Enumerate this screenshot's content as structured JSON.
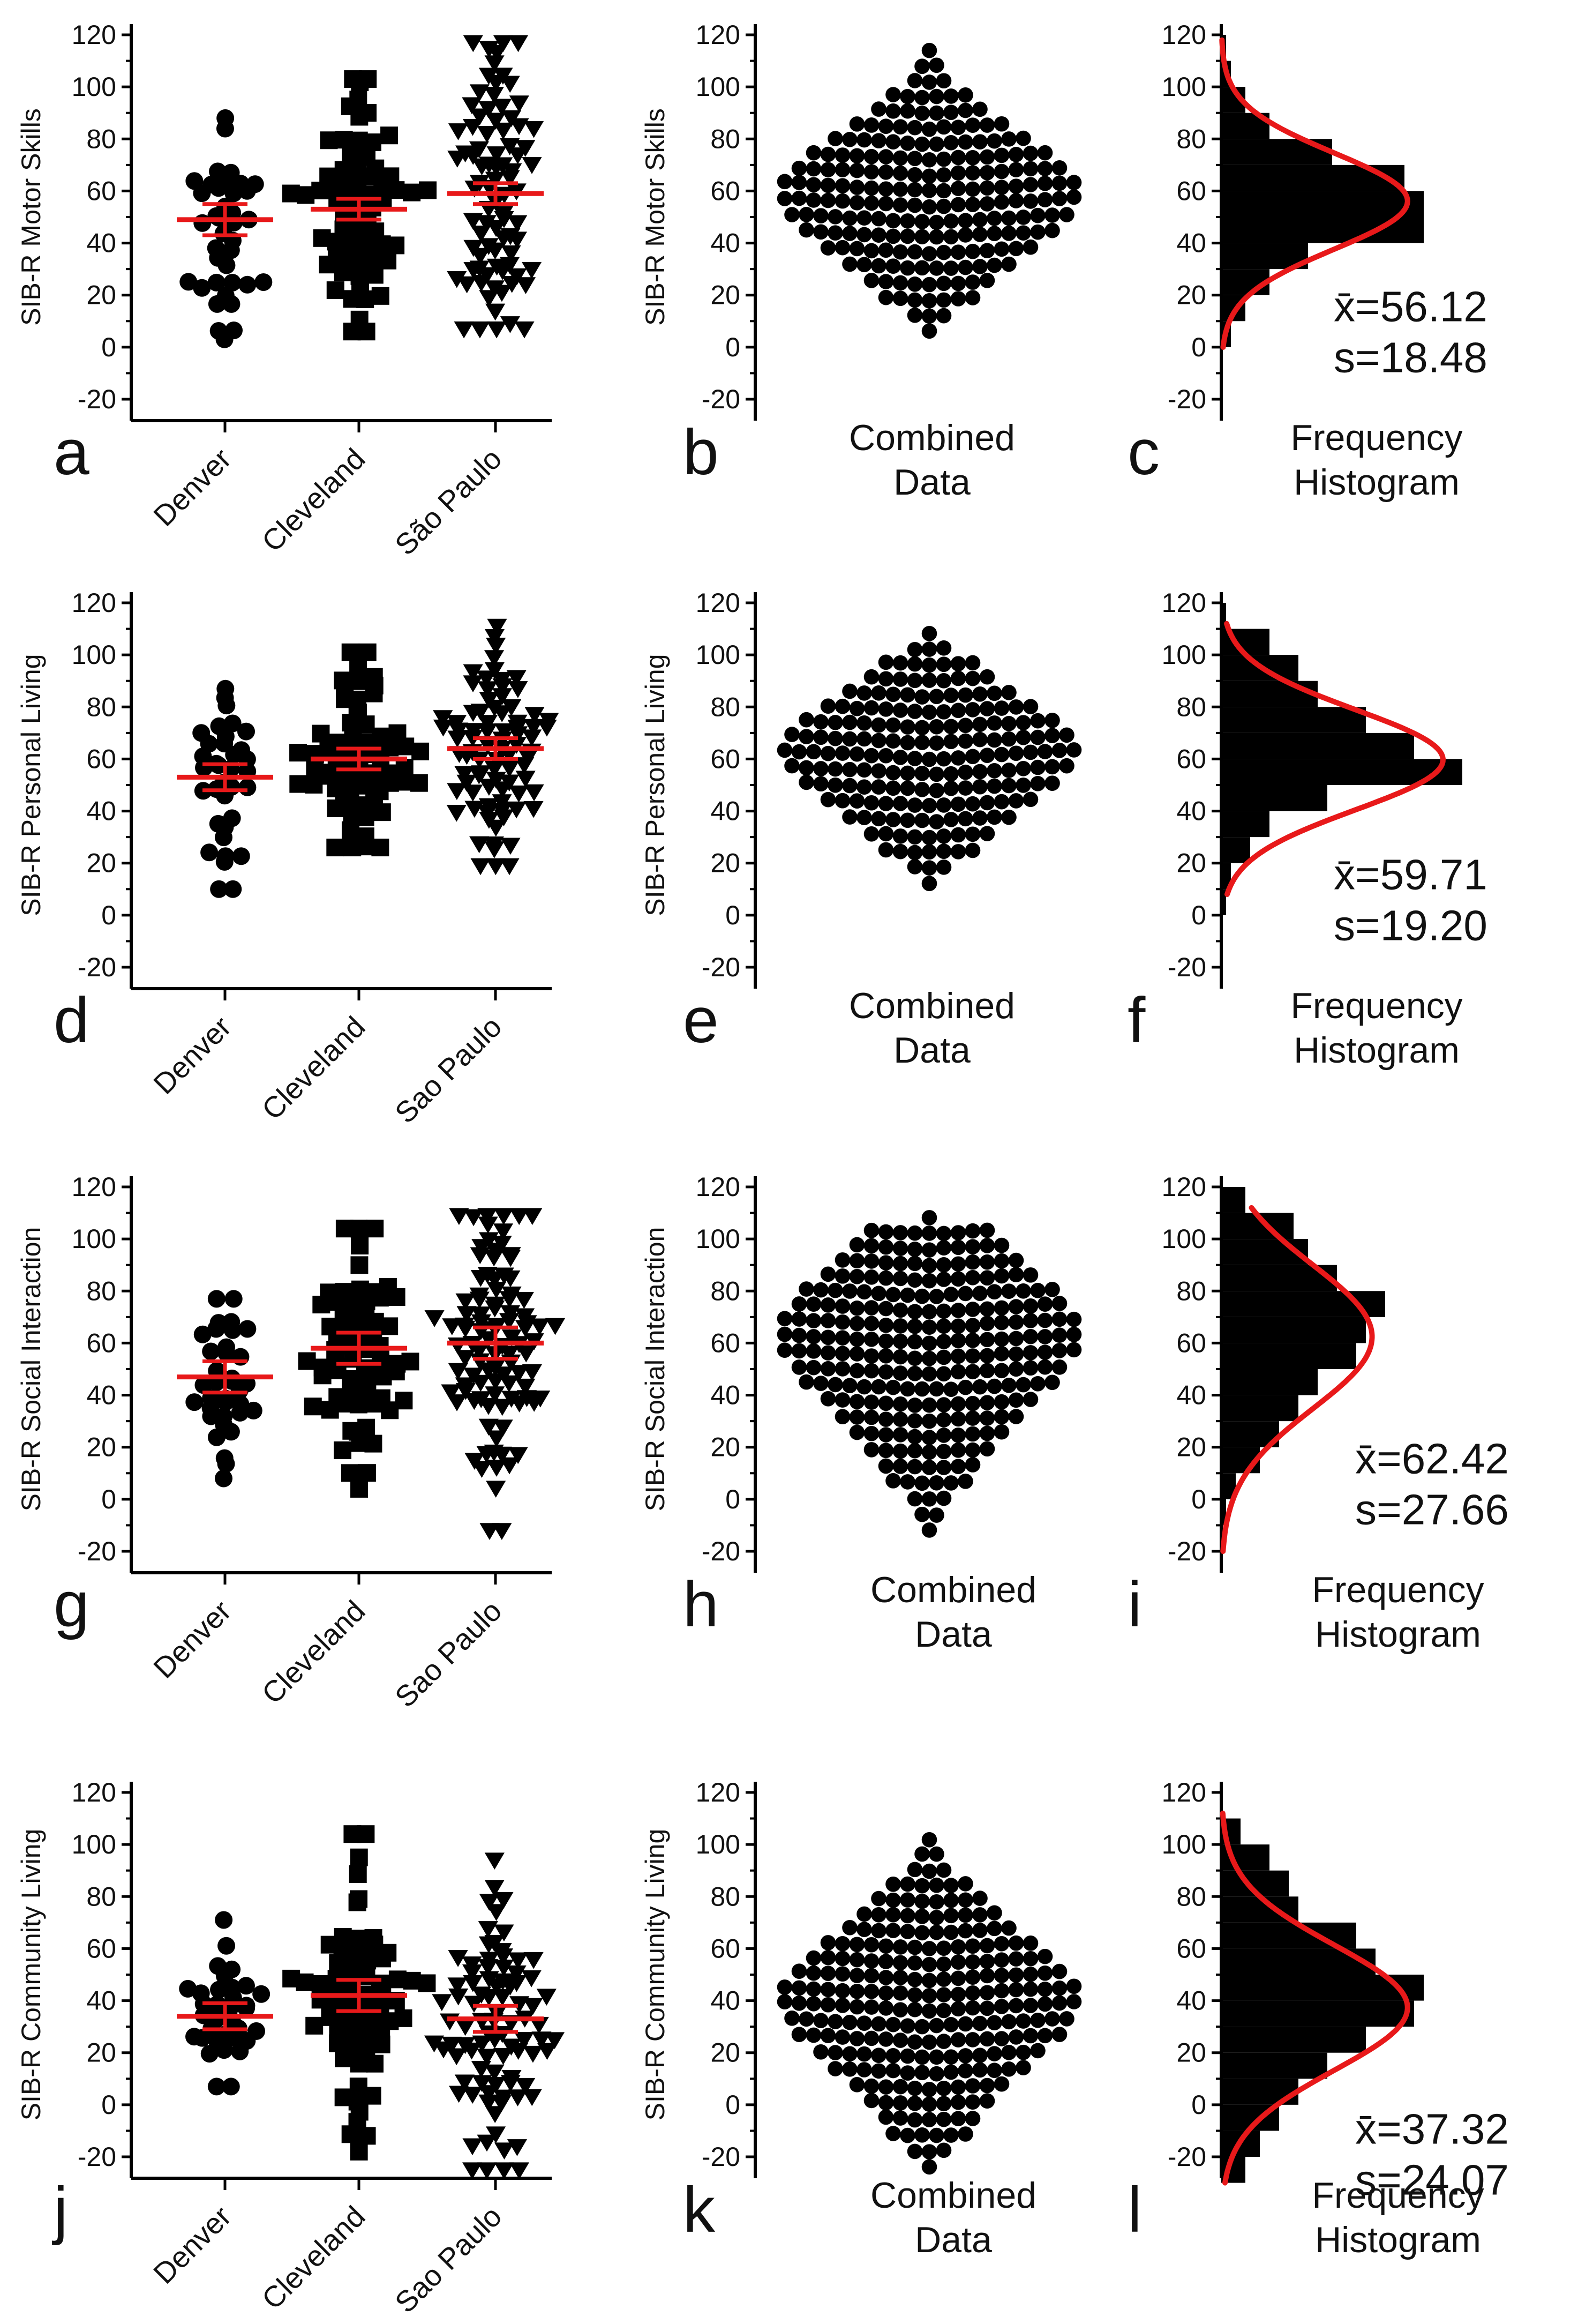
{
  "figure": {
    "accent_color": "#e8191a",
    "marker_color": "#000000"
  },
  "chart_data": [
    {
      "row": 0,
      "type": "scatter",
      "panel": "a",
      "ylabel": "SIB-R Motor Skills",
      "ylim": [
        -20,
        120
      ],
      "yticks": [
        "120",
        "100",
        "80",
        "60",
        "40",
        "20",
        "0",
        "-20"
      ],
      "categories": [
        "Denver",
        "Cleveland",
        "São Paulo"
      ],
      "markers": [
        "circle",
        "square",
        "triangle-down"
      ],
      "counts": [
        38,
        70,
        85
      ],
      "means": [
        49,
        53,
        59
      ],
      "ci_half": [
        6,
        4,
        4
      ],
      "ranges": [
        [
          3,
          88
        ],
        [
          6,
          103
        ],
        [
          7,
          117
        ]
      ]
    },
    {
      "row": 0,
      "type": "scatter",
      "panel": "b",
      "ylabel": "SIB-R Motor Skills",
      "ylim": [
        -20,
        120
      ],
      "yticks": [
        "120",
        "100",
        "80",
        "60",
        "40",
        "20",
        "0",
        "-20"
      ],
      "caption": [
        "Combined",
        "Data"
      ],
      "range": [
        3,
        117
      ],
      "center": 56,
      "spread": 22
    },
    {
      "row": 0,
      "type": "bar",
      "panel": "c",
      "ylim": [
        -20,
        120
      ],
      "yticks": [
        "120",
        "100",
        "80",
        "60",
        "40",
        "20",
        "0",
        "-20"
      ],
      "caption": [
        "Frequency",
        "Histogram"
      ],
      "bins": [
        0,
        10,
        20,
        30,
        40,
        50,
        60,
        70,
        80,
        90,
        100,
        110
      ],
      "counts": [
        2,
        5,
        10,
        18,
        42,
        42,
        38,
        23,
        10,
        5,
        2,
        1
      ],
      "bin_width": 10,
      "hist_range": [
        -5,
        120
      ],
      "fit": {
        "mean": 56.12,
        "sd": 18.48,
        "y_range": [
          0,
          118
        ]
      },
      "stats": {
        "mean_label": "x̄=56.12",
        "sd_label": "s=18.48"
      }
    },
    {
      "row": 1,
      "type": "scatter",
      "panel": "d",
      "ylabel": "SIB-R Personal Living",
      "ylim": [
        -20,
        120
      ],
      "yticks": [
        "120",
        "100",
        "80",
        "60",
        "40",
        "20",
        "0",
        "-20"
      ],
      "categories": [
        "Denver",
        "Cleveland",
        "Sao Paulo"
      ],
      "markers": [
        "circle",
        "square",
        "triangle-down"
      ],
      "counts": [
        35,
        70,
        85
      ],
      "means": [
        53,
        60,
        64
      ],
      "ci_half": [
        5,
        4,
        4
      ],
      "ranges": [
        [
          10,
          87
        ],
        [
          26,
          101
        ],
        [
          19,
          111
        ]
      ]
    },
    {
      "row": 1,
      "type": "scatter",
      "panel": "e",
      "ylabel": "SIB-R Personal Living",
      "ylim": [
        -20,
        120
      ],
      "yticks": [
        "120",
        "100",
        "80",
        "60",
        "40",
        "20",
        "0",
        "-20"
      ],
      "caption": [
        "Combined",
        "Data"
      ],
      "range": [
        10,
        110
      ],
      "center": 60,
      "spread": 20
    },
    {
      "row": 1,
      "type": "bar",
      "panel": "f",
      "ylim": [
        -20,
        120
      ],
      "yticks": [
        "120",
        "100",
        "80",
        "60",
        "40",
        "20",
        "0",
        "-20"
      ],
      "caption": [
        "Frequency",
        "Histogram"
      ],
      "bins": [
        0,
        10,
        20,
        30,
        40,
        50,
        60,
        70,
        80,
        90,
        100,
        110
      ],
      "counts": [
        1,
        2,
        6,
        10,
        22,
        50,
        40,
        30,
        20,
        16,
        10,
        1
      ],
      "bin_width": 10,
      "hist_range": [
        -5,
        120
      ],
      "fit": {
        "mean": 59.71,
        "sd": 19.2,
        "y_range": [
          8,
          112
        ]
      },
      "stats": {
        "mean_label": "x̄=59.71",
        "sd_label": "s=19.20"
      }
    },
    {
      "row": 2,
      "type": "scatter",
      "panel": "g",
      "ylabel": "SIB-R Social Interaction",
      "ylim": [
        -20,
        120
      ],
      "yticks": [
        "120",
        "100",
        "80",
        "60",
        "40",
        "20",
        "0",
        "-20"
      ],
      "categories": [
        "Denver",
        "Cleveland",
        "Sao Paulo"
      ],
      "markers": [
        "circle",
        "square",
        "triangle-down"
      ],
      "counts": [
        35,
        70,
        100
      ],
      "means": [
        47,
        58,
        60
      ],
      "ci_half": [
        6,
        6,
        6
      ],
      "ranges": [
        [
          8,
          77
        ],
        [
          4,
          104
        ],
        [
          -12,
          109
        ]
      ]
    },
    {
      "row": 2,
      "type": "scatter",
      "panel": "h",
      "ylabel": "SIB-R Social Interaction",
      "ylim": [
        -20,
        120
      ],
      "yticks": [
        "120",
        "100",
        "80",
        "60",
        "40",
        "20",
        "0",
        "-20"
      ],
      "caption": [
        "Combined",
        "Data"
      ],
      "range": [
        -12,
        108
      ],
      "center": 60,
      "spread": 28
    },
    {
      "row": 2,
      "type": "bar",
      "panel": "i",
      "ylim": [
        -20,
        120
      ],
      "yticks": [
        "120",
        "100",
        "80",
        "60",
        "40",
        "20",
        "0",
        "-20"
      ],
      "caption": [
        "Frequency",
        "Histogram"
      ],
      "bins": [
        -10,
        0,
        10,
        20,
        30,
        40,
        50,
        60,
        70,
        80,
        90,
        100,
        110
      ],
      "counts": [
        1,
        3,
        8,
        12,
        16,
        20,
        28,
        30,
        34,
        24,
        18,
        15,
        5
      ],
      "bin_width": 10,
      "hist_range": [
        -15,
        120
      ],
      "fit": {
        "mean": 62.42,
        "sd": 27.66,
        "y_range": [
          -20,
          112
        ]
      },
      "stats": {
        "mean_label": "x̄=62.42",
        "sd_label": "s=27.66"
      }
    },
    {
      "row": 3,
      "type": "scatter",
      "panel": "j",
      "ylabel": "SIB-R Community Living",
      "ylim": [
        -20,
        120
      ],
      "yticks": [
        "120",
        "100",
        "80",
        "60",
        "40",
        "20",
        "0",
        "-20"
      ],
      "categories": [
        "Denver",
        "Cleveland",
        "Sao Paulo"
      ],
      "markers": [
        "circle",
        "square",
        "triangle-down"
      ],
      "counts": [
        35,
        70,
        90
      ],
      "means": [
        34,
        42,
        33
      ],
      "ci_half": [
        5,
        6,
        5
      ],
      "ranges": [
        [
          7,
          71
        ],
        [
          -18,
          104
        ],
        [
          -25,
          94
        ]
      ]
    },
    {
      "row": 3,
      "type": "scatter",
      "panel": "k",
      "ylabel": "SIB-R Community Living",
      "ylim": [
        -20,
        120
      ],
      "yticks": [
        "120",
        "100",
        "80",
        "60",
        "40",
        "20",
        "0",
        "-20"
      ],
      "caption": [
        "Combined",
        "Data"
      ],
      "range": [
        -25,
        104
      ],
      "center": 37,
      "spread": 25
    },
    {
      "row": 3,
      "type": "bar",
      "panel": "l",
      "ylim": [
        -20,
        120
      ],
      "yticks": [
        "120",
        "100",
        "80",
        "60",
        "40",
        "20",
        "0",
        "-20"
      ],
      "caption": [
        "Frequency",
        "Histogram"
      ],
      "bins": [
        -30,
        -20,
        -10,
        0,
        10,
        20,
        30,
        40,
        50,
        60,
        70,
        80,
        90,
        100
      ],
      "counts": [
        5,
        8,
        12,
        16,
        22,
        30,
        40,
        42,
        32,
        28,
        16,
        14,
        10,
        4
      ],
      "bin_width": 10,
      "hist_range": [
        -30,
        110
      ],
      "fit": {
        "mean": 37.32,
        "sd": 24.07,
        "y_range": [
          -30,
          112
        ]
      },
      "stats": {
        "mean_label": "x̄=37.32",
        "sd_label": "s=24.07"
      }
    }
  ]
}
